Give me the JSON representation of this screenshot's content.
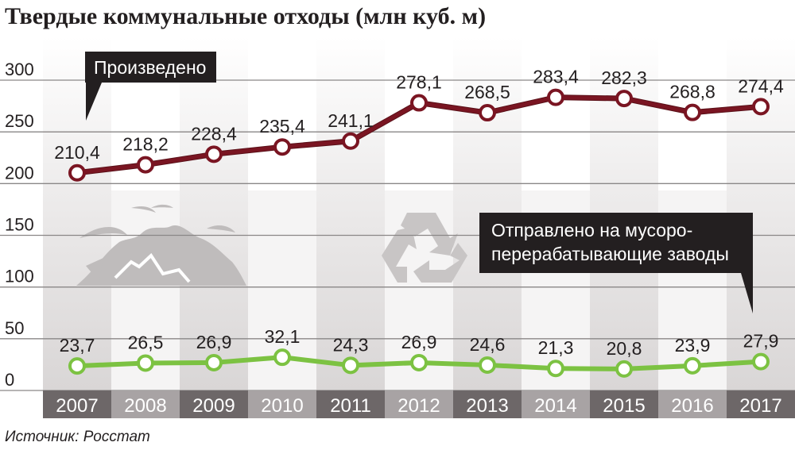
{
  "chart_data": {
    "type": "line",
    "title": "Твердые коммунальные отходы (млн куб. м)",
    "source": "Источник: Росстат",
    "categories": [
      "2007",
      "2008",
      "2009",
      "2010",
      "2011",
      "2012",
      "2013",
      "2014",
      "2015",
      "2016",
      "2017"
    ],
    "y_ticks": [
      "0",
      "50",
      "100",
      "150",
      "200",
      "250",
      "300"
    ],
    "ylim": [
      0,
      300
    ],
    "grid": true,
    "series": [
      {
        "name": "Произведено",
        "color": "#7a1522",
        "values": [
          210.4,
          218.2,
          228.4,
          235.4,
          241.1,
          278.1,
          268.5,
          283.4,
          282.3,
          268.8,
          274.4
        ],
        "labels": [
          "210,4",
          "218,2",
          "228,4",
          "235,4",
          "241,1",
          "278,1",
          "268,5",
          "283,4",
          "282,3",
          "268,8",
          "274,4"
        ],
        "callout_lines": [
          "Произведено"
        ]
      },
      {
        "name": "Отправлено на мусороперерабатывающие заводы",
        "color": "#7cc242",
        "values": [
          23.7,
          26.5,
          26.9,
          32.1,
          24.3,
          26.9,
          24.6,
          21.3,
          20.8,
          23.9,
          27.9
        ],
        "labels": [
          "23,7",
          "26,5",
          "26,9",
          "32,1",
          "24,3",
          "26,9",
          "24,6",
          "21,3",
          "20,8",
          "23,9",
          "27,9"
        ],
        "callout_lines": [
          "Отправлено на мусоро-",
          "перерабатывающие заводы"
        ]
      }
    ],
    "decorations": [
      "landfill-icon",
      "recycle-icon"
    ]
  }
}
